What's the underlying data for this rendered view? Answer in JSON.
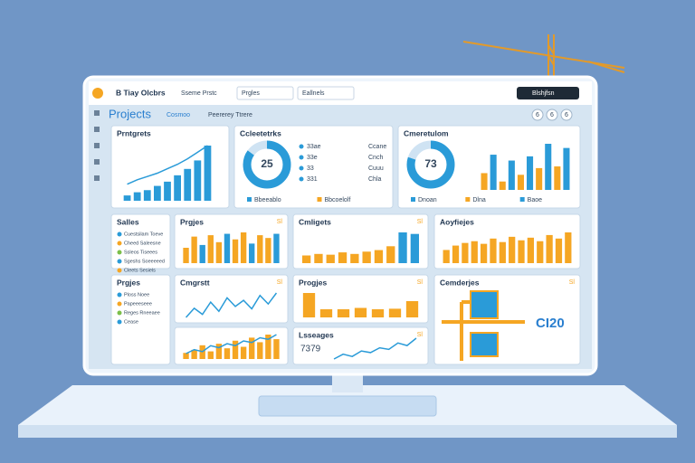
{
  "header": {
    "title": "B Tiay Olcbrs",
    "tab": "Sseme Prstc",
    "dropdowns": [
      "Prgles",
      "Eallnels"
    ],
    "button": "Blshjfsn",
    "icons": [
      "6",
      "6",
      "6"
    ]
  },
  "toolbar": {
    "title": "Projects",
    "links": [
      "Cosmoo",
      "Peererey Ttrere"
    ]
  },
  "panels": [
    {
      "title": "Prntgrets",
      "type": "barsline",
      "bars": [
        5,
        8,
        10,
        14,
        18,
        24,
        30,
        38,
        52
      ],
      "line": [
        30,
        38,
        44,
        50,
        58,
        66,
        76,
        88,
        100
      ],
      "colors": [
        "#2a9bd8"
      ]
    },
    {
      "title": "Ccleetetrks",
      "type": "donut",
      "center": "25",
      "donut": [
        85,
        15
      ],
      "donut_colors": [
        "#2a9bd8",
        "#cfe3f3"
      ],
      "rows": [
        "33ae",
        "33e",
        "33",
        "331"
      ],
      "rows_right": [
        "Ccane",
        "Cnch",
        "Cuuu",
        "Chla"
      ],
      "legend": [
        "Bbeeablo",
        "Bbcoelolf"
      ]
    },
    {
      "title": "Cmeretulom",
      "type": "donut",
      "center": "73",
      "donut": [
        80,
        20
      ],
      "donut_colors": [
        "#2a9bd8",
        "#cfe3f3"
      ],
      "bars": [
        20,
        42,
        10,
        35,
        18,
        40,
        26,
        55,
        28,
        50
      ],
      "colors": [
        "#f5a623",
        "#2a9bd8"
      ],
      "legend": [
        "Dnoan",
        "Dlna",
        "Baoe"
      ]
    },
    {
      "title": "Salles",
      "type": "list",
      "items": [
        "Cuestsilam Toeve",
        "Cheed Saleesne",
        "Ssleos Tiseees",
        "Sgeshs Soeeeeed",
        "Cleets Sesiels"
      ]
    },
    {
      "title": "Prgjes",
      "type": "bars",
      "badge": "Sl",
      "bars": [
        22,
        38,
        26,
        40,
        30,
        42,
        34,
        44,
        28,
        40,
        36,
        42
      ],
      "colors": [
        "#f5a623",
        "#f5a623",
        "#2a9bd8"
      ]
    },
    {
      "title": "Cmligets",
      "type": "bars",
      "badge": "Sl",
      "bars": [
        20,
        24,
        22,
        28,
        24,
        30,
        34,
        44,
        80,
        76
      ],
      "colors": [
        "#f5a623",
        "#f5a623",
        "#f5a623",
        "#f5a623",
        "#f5a623",
        "#f5a623",
        "#f5a623",
        "#f5a623",
        "#2a9bd8",
        "#2a9bd8"
      ]
    },
    {
      "title": "Aoyfiejes",
      "type": "bars",
      "bars": [
        30,
        40,
        46,
        50,
        44,
        56,
        48,
        60,
        52,
        58,
        50,
        64,
        56,
        70
      ],
      "colors": [
        "#f5a623"
      ]
    },
    {
      "title": "Prgjes",
      "type": "list",
      "items": [
        "Ploss Noee",
        "Papeeeseee",
        "Reges Rneeaee",
        "Cease"
      ]
    },
    {
      "title": "Cmgrstt",
      "type": "line",
      "badge": "Sl",
      "line": [
        30,
        45,
        35,
        55,
        40,
        62,
        48,
        58,
        44,
        66,
        52,
        70
      ],
      "colors": [
        "#2a9bd8"
      ]
    },
    {
      "title": "Progjes",
      "type": "bars",
      "badge": "Sl",
      "bars": [
        90,
        30,
        30,
        35,
        30,
        32,
        60
      ],
      "colors": [
        "#f5a623"
      ]
    },
    {
      "title": "Cemderjes",
      "type": "diagram",
      "badge": "Sl",
      "label": "CI20"
    },
    {
      "type": "linebars",
      "bars": [
        20,
        30,
        45,
        25,
        50,
        35,
        60,
        40,
        70,
        55,
        80,
        65
      ],
      "line": [
        30,
        40,
        35,
        50,
        45,
        55,
        50,
        62,
        58,
        70,
        66,
        78
      ],
      "colors": [
        "#f5a623"
      ]
    },
    {
      "title": "Lsseages",
      "type": "line",
      "badge": "Sl",
      "center": "7379",
      "line": [
        20,
        35,
        28,
        45,
        40,
        55,
        50,
        70,
        62,
        85
      ],
      "colors": [
        "#2a9bd8"
      ]
    }
  ]
}
